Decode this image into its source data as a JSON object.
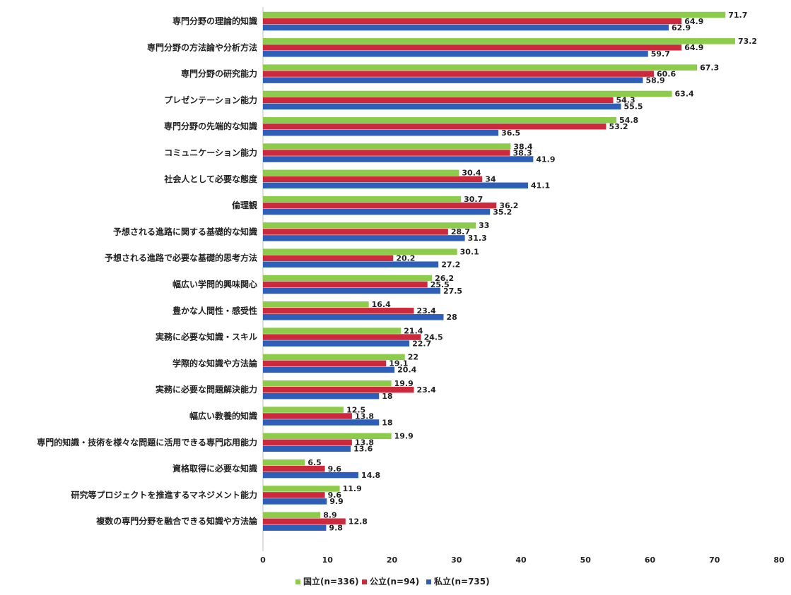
{
  "chart_data": {
    "type": "bar",
    "orientation": "horizontal",
    "categories": [
      "専門分野の理論的知識",
      "専門分野の方法論や分析方法",
      "専門分野の研究能力",
      "プレゼンテーション能力",
      "専門分野の先端的な知識",
      "コミュニケーション能力",
      "社会人として必要な態度",
      "倫理観",
      "予想される進路に関する基礎的な知識",
      "予想される進路で必要な基礎的思考方法",
      "幅広い学問的興味関心",
      "豊かな人間性・感受性",
      "実務に必要な知識・スキル",
      "学際的な知識や方法論",
      "実務に必要な問題解決能力",
      "幅広い教養的知識",
      "専門的知識・技術を様々な問題に活用できる専門応用能力",
      "資格取得に必要な知識",
      "研究等プロジェクトを推進するマネジメント能力",
      "複数の専門分野を融合できる知識や方法論"
    ],
    "series": [
      {
        "name": "国立(n=336)",
        "color": "#8ccc4a",
        "values": [
          71.7,
          73.2,
          67.3,
          63.4,
          54.8,
          38.4,
          30.4,
          30.7,
          33,
          30.1,
          26.2,
          16.4,
          21.4,
          22,
          19.9,
          12.5,
          19.9,
          6.5,
          11.9,
          8.9
        ]
      },
      {
        "name": "公立(n=94)",
        "color": "#cc2a3c",
        "values": [
          64.9,
          64.9,
          60.6,
          54.3,
          53.2,
          38.3,
          34,
          36.2,
          28.7,
          20.2,
          25.5,
          23.4,
          24.5,
          19.1,
          23.4,
          13.8,
          13.8,
          9.6,
          9.6,
          12.8
        ]
      },
      {
        "name": "私立(n=735)",
        "color": "#2d5fb8",
        "values": [
          62.9,
          59.7,
          58.9,
          55.5,
          36.5,
          41.9,
          41.1,
          35.2,
          31.3,
          27.2,
          27.5,
          28,
          22.7,
          20.4,
          18,
          18,
          13.6,
          14.8,
          9.9,
          9.8
        ]
      }
    ],
    "x_ticks": [
      "0",
      "10",
      "20",
      "30",
      "40",
      "50",
      "60",
      "70",
      "80"
    ],
    "xlim": [
      0,
      80
    ],
    "legend_position": "bottom"
  }
}
